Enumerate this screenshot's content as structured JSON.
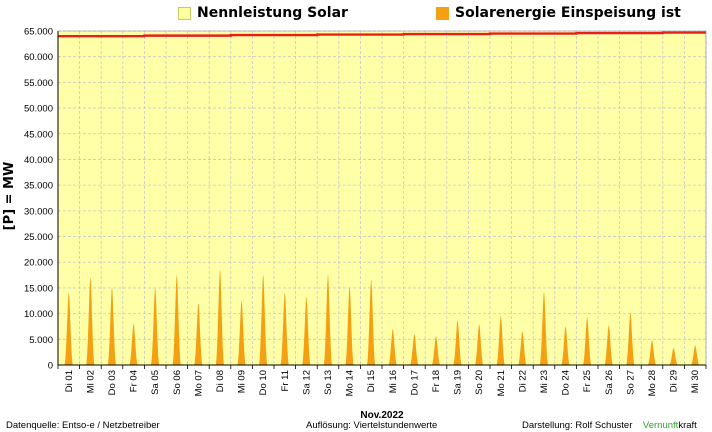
{
  "legend": {
    "items": [
      {
        "label": "Nennleistung Solar",
        "color": "#ffffa0",
        "border": "#c8c864"
      },
      {
        "label": "Solarenergie Einspeisung ist",
        "color": "#f5a012",
        "border": "#f5a012"
      }
    ]
  },
  "footer": {
    "source": "Datenquelle:  Entso-e  / Netzbetreiber",
    "resolution": "Auflösung: Viertelstundenwerte",
    "author": "Darstellung:  Rolf Schuster",
    "brand_green": "Vernunft",
    "brand_black": "kraft"
  },
  "colors": {
    "plot_bg": "#ffffa8",
    "capacity_line": "#e8201c",
    "feed_in": "#f5a012",
    "grid": "#c8c8c8"
  },
  "chart_data": {
    "type": "area",
    "xlabel": "Nov.2022",
    "ylabel": "[P] = MW",
    "ylim": [
      0,
      65000
    ],
    "grid": true,
    "legend_position": "top",
    "yticks": [
      "0",
      "5.000",
      "10.000",
      "15.000",
      "20.000",
      "25.000",
      "30.000",
      "35.000",
      "40.000",
      "45.000",
      "50.000",
      "55.000",
      "60.000",
      "65.000"
    ],
    "categories": [
      "Di 01",
      "Mi 02",
      "Do 03",
      "Fr 04",
      "Sa 05",
      "So 06",
      "Mo 07",
      "Di 08",
      "Mi 09",
      "Do 10",
      "Fr 11",
      "Sa 12",
      "So 13",
      "Mo 14",
      "Di 15",
      "Mi 16",
      "Do 17",
      "Fr 18",
      "Sa 19",
      "So 20",
      "Mo 21",
      "Di 22",
      "Mi 23",
      "Do 24",
      "Fr 25",
      "Sa 26",
      "So 27",
      "Mo 28",
      "Di 29",
      "Mi 30"
    ],
    "series": [
      {
        "name": "Nennleistung Solar",
        "values": [
          64000,
          64000,
          64000,
          64000,
          64100,
          64100,
          64100,
          64100,
          64200,
          64200,
          64200,
          64200,
          64300,
          64300,
          64300,
          64300,
          64400,
          64400,
          64400,
          64400,
          64500,
          64500,
          64500,
          64500,
          64600,
          64600,
          64600,
          64600,
          64700,
          64700
        ]
      },
      {
        "name": "Solarenergie Einspeisung ist",
        "values": [
          14000,
          17000,
          15000,
          8000,
          15000,
          17500,
          12000,
          18500,
          12500,
          17500,
          14000,
          13200,
          17500,
          15200,
          16600,
          7000,
          6000,
          5600,
          8700,
          7900,
          9500,
          6500,
          14200,
          7500,
          9300,
          7700,
          10200,
          4800,
          3300,
          3800
        ]
      }
    ]
  }
}
